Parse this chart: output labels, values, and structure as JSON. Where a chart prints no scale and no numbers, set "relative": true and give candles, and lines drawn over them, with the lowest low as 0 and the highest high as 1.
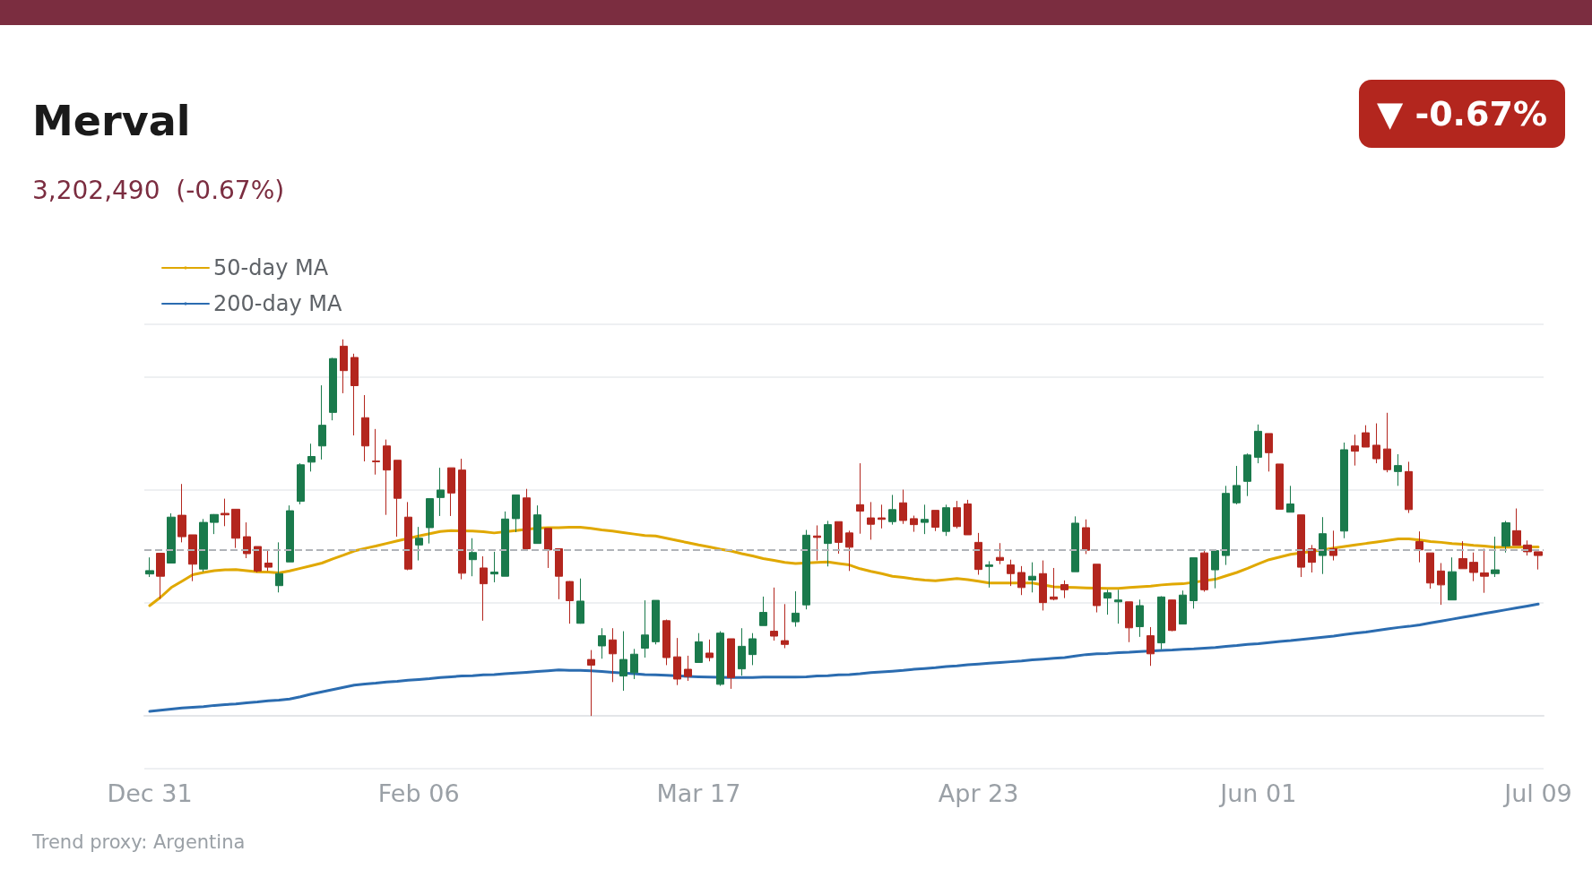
{
  "chart_data": {
    "type": "candlestick",
    "title": "Merval",
    "subtitle": "3,202,490  (-0.67%)",
    "annotations": [
      "▼ -0.67%",
      "Trend proxy: Argentina"
    ],
    "relative": true,
    "grid": "y",
    "legend": "top left",
    "marker": "none",
    "categories": [
      "Dec 31",
      null,
      null,
      null,
      null,
      null,
      null,
      null,
      null,
      null,
      null,
      null,
      null,
      null,
      null,
      null,
      null,
      null,
      null,
      null,
      null,
      null,
      null,
      null,
      null,
      "Feb 06",
      null,
      null,
      null,
      null,
      null,
      null,
      null,
      null,
      null,
      null,
      null,
      null,
      null,
      null,
      null,
      null,
      null,
      null,
      null,
      null,
      null,
      null,
      null,
      null,
      null,
      "Mar 17",
      null,
      null,
      null,
      null,
      null,
      null,
      null,
      null,
      null,
      null,
      null,
      null,
      null,
      null,
      null,
      null,
      null,
      null,
      null,
      null,
      null,
      null,
      null,
      null,
      null,
      "Apr 23",
      null,
      null,
      null,
      null,
      null,
      null,
      null,
      null,
      null,
      null,
      null,
      null,
      null,
      null,
      null,
      null,
      null,
      null,
      null,
      null,
      null,
      null,
      null,
      null,
      null,
      "Jun 01",
      null,
      null,
      null,
      null,
      null,
      null,
      null,
      null,
      null,
      null,
      null,
      null,
      null,
      null,
      null,
      null,
      null,
      null,
      null,
      null,
      null,
      null,
      null,
      null,
      null,
      "Jul 09"
    ],
    "ref_lines": [
      {
        "axis": "y",
        "value": 0.437,
        "color": "#b0b3b8",
        "line_style": "dashed"
      }
    ],
    "series": [
      {
        "ohlc": [
          [
            0.377,
            0.421,
            0.369,
            0.386
          ],
          [
            0.432,
            0.432,
            0.311,
            0.371
          ],
          [
            0.406,
            0.538,
            0.405,
            0.528
          ],
          [
            0.533,
            0.616,
            0.461,
            0.476
          ],
          [
            0.481,
            0.481,
            0.358,
            0.403
          ],
          [
            0.39,
            0.523,
            0.383,
            0.514
          ],
          [
            0.514,
            0.536,
            0.483,
            0.535
          ],
          [
            0.538,
            0.577,
            0.504,
            0.534
          ],
          [
            0.549,
            0.549,
            0.446,
            0.472
          ],
          [
            0.476,
            0.514,
            0.419,
            0.431
          ],
          [
            0.45,
            0.45,
            0.381,
            0.385
          ],
          [
            0.406,
            0.441,
            0.385,
            0.395
          ],
          [
            0.346,
            0.461,
            0.328,
            0.378
          ],
          [
            0.409,
            0.559,
            0.409,
            0.545
          ],
          [
            0.57,
            0.671,
            0.562,
            0.667
          ],
          [
            0.674,
            0.723,
            0.649,
            0.689
          ],
          [
            0.717,
            0.878,
            0.681,
            0.772
          ],
          [
            0.806,
            0.951,
            0.785,
            0.949
          ],
          [
            0.982,
            1,
            0.857,
            0.917
          ],
          [
            0.952,
            0.962,
            0.745,
            0.877
          ],
          [
            0.792,
            0.852,
            0.676,
            0.717
          ],
          [
            0.677,
            0.762,
            0.641,
            0.675
          ],
          [
            0.717,
            0.734,
            0.534,
            0.653
          ],
          [
            0.679,
            0.679,
            0.476,
            0.578
          ],
          [
            0.528,
            0.568,
            0.387,
            0.39
          ],
          [
            0.454,
            0.502,
            0.413,
            0.472
          ],
          [
            0.5,
            0.577,
            0.458,
            0.577
          ],
          [
            0.58,
            0.659,
            0.531,
            0.6
          ],
          [
            0.659,
            0.659,
            0.531,
            0.592
          ],
          [
            0.653,
            0.683,
            0.363,
            0.379
          ],
          [
            0.415,
            0.472,
            0.371,
            0.434
          ],
          [
            0.393,
            0.424,
            0.253,
            0.351
          ],
          [
            0.377,
            0.436,
            0.355,
            0.382
          ],
          [
            0.371,
            0.543,
            0.371,
            0.523
          ],
          [
            0.524,
            0.587,
            0.488,
            0.587
          ],
          [
            0.579,
            0.603,
            0.438,
            0.444
          ],
          [
            0.458,
            0.559,
            0.458,
            0.534
          ],
          [
            0.498,
            0.498,
            0.393,
            0.441
          ],
          [
            0.444,
            0.444,
            0.31,
            0.371
          ],
          [
            0.357,
            0.358,
            0.245,
            0.306
          ],
          [
            0.246,
            0.365,
            0.245,
            0.305
          ],
          [
            0.15,
            0.175,
            0,
            0.135
          ],
          [
            0.186,
            0.233,
            0.152,
            0.213
          ],
          [
            0.202,
            0.233,
            0.09,
            0.165
          ],
          [
            0.106,
            0.225,
            0.067,
            0.15
          ],
          [
            0.115,
            0.178,
            0.098,
            0.164
          ],
          [
            0.18,
            0.307,
            0.155,
            0.215
          ],
          [
            0.197,
            0.307,
            0.19,
            0.307
          ],
          [
            0.253,
            0.256,
            0.135,
            0.155
          ],
          [
            0.157,
            0.207,
            0.082,
            0.098
          ],
          [
            0.124,
            0.16,
            0.093,
            0.105
          ],
          [
            0.142,
            0.22,
            0.142,
            0.197
          ],
          [
            0.167,
            0.203,
            0.145,
            0.155
          ],
          [
            0.084,
            0.225,
            0.08,
            0.22
          ],
          [
            0.205,
            0.205,
            0.072,
            0.102
          ],
          [
            0.125,
            0.233,
            0.107,
            0.185
          ],
          [
            0.163,
            0.22,
            0.135,
            0.205
          ],
          [
            0.24,
            0.317,
            0.24,
            0.275
          ],
          [
            0.225,
            0.341,
            0.2,
            0.212
          ],
          [
            0.2,
            0.297,
            0.18,
            0.19
          ],
          [
            0.25,
            0.331,
            0.237,
            0.273
          ],
          [
            0.295,
            0.494,
            0.283,
            0.48
          ],
          [
            0.478,
            0.506,
            0.413,
            0.474
          ],
          [
            0.458,
            0.518,
            0.397,
            0.508
          ],
          [
            0.516,
            0.516,
            0.431,
            0.461
          ],
          [
            0.486,
            0.492,
            0.385,
            0.448
          ],
          [
            0.561,
            0.671,
            0.484,
            0.544
          ],
          [
            0.526,
            0.568,
            0.468,
            0.509
          ],
          [
            0.526,
            0.561,
            0.498,
            0.522
          ],
          [
            0.516,
            0.587,
            0.508,
            0.548
          ],
          [
            0.566,
            0.601,
            0.51,
            0.519
          ],
          [
            0.524,
            0.532,
            0.489,
            0.508
          ],
          [
            0.514,
            0.561,
            0.483,
            0.522
          ],
          [
            0.546,
            0.546,
            0.491,
            0.501
          ],
          [
            0.49,
            0.561,
            0.478,
            0.553
          ],
          [
            0.553,
            0.571,
            0.498,
            0.503
          ],
          [
            0.563,
            0.574,
            0.481,
            0.481
          ],
          [
            0.461,
            0.486,
            0.375,
            0.389
          ],
          [
            0.397,
            0.411,
            0.341,
            0.401
          ],
          [
            0.421,
            0.459,
            0.403,
            0.413
          ],
          [
            0.401,
            0.415,
            0.345,
            0.378
          ],
          [
            0.381,
            0.398,
            0.321,
            0.341
          ],
          [
            0.361,
            0.408,
            0.328,
            0.371
          ],
          [
            0.378,
            0.413,
            0.28,
            0.301
          ],
          [
            0.316,
            0.393,
            0.307,
            0.31
          ],
          [
            0.349,
            0.36,
            0.313,
            0.335
          ],
          [
            0.383,
            0.53,
            0.383,
            0.512
          ],
          [
            0.5,
            0.522,
            0.43,
            0.44
          ],
          [
            0.403,
            0.403,
            0.275,
            0.293
          ],
          [
            0.313,
            0.335,
            0.269,
            0.327
          ],
          [
            0.303,
            0.335,
            0.245,
            0.308
          ],
          [
            0.303,
            0.303,
            0.196,
            0.234
          ],
          [
            0.237,
            0.309,
            0.21,
            0.293
          ],
          [
            0.213,
            0.236,
            0.133,
            0.165
          ],
          [
            0.194,
            0.318,
            0.177,
            0.316
          ],
          [
            0.308,
            0.309,
            0.225,
            0.227
          ],
          [
            0.244,
            0.333,
            0.244,
            0.321
          ],
          [
            0.306,
            0.42,
            0.285,
            0.42
          ],
          [
            0.433,
            0.438,
            0.33,
            0.335
          ],
          [
            0.388,
            0.439,
            0.339,
            0.439
          ],
          [
            0.426,
            0.611,
            0.401,
            0.591
          ],
          [
            0.566,
            0.664,
            0.562,
            0.612
          ],
          [
            0.623,
            0.697,
            0.584,
            0.693
          ],
          [
            0.687,
            0.774,
            0.671,
            0.756
          ],
          [
            0.75,
            0.75,
            0.649,
            0.699
          ],
          [
            0.669,
            0.669,
            0.549,
            0.549
          ],
          [
            0.541,
            0.611,
            0.541,
            0.563
          ],
          [
            0.534,
            0.534,
            0.369,
            0.395
          ],
          [
            0.444,
            0.454,
            0.381,
            0.408
          ],
          [
            0.426,
            0.528,
            0.377,
            0.484
          ],
          [
            0.444,
            0.492,
            0.413,
            0.426
          ],
          [
            0.491,
            0.726,
            0.472,
            0.707
          ],
          [
            0.717,
            0.747,
            0.665,
            0.703
          ],
          [
            0.752,
            0.772,
            0.714,
            0.714
          ],
          [
            0.719,
            0.777,
            0.671,
            0.683
          ],
          [
            0.709,
            0.805,
            0.647,
            0.654
          ],
          [
            0.649,
            0.695,
            0.611,
            0.665
          ],
          [
            0.649,
            0.675,
            0.539,
            0.548
          ],
          [
            0.463,
            0.49,
            0.408,
            0.441
          ],
          [
            0.433,
            0.433,
            0.338,
            0.353
          ],
          [
            0.385,
            0.406,
            0.295,
            0.348
          ],
          [
            0.308,
            0.421,
            0.308,
            0.383
          ],
          [
            0.418,
            0.464,
            0.391,
            0.391
          ],
          [
            0.408,
            0.434,
            0.358,
            0.381
          ],
          [
            0.38,
            0.444,
            0.327,
            0.371
          ],
          [
            0.378,
            0.476,
            0.369,
            0.388
          ],
          [
            0.451,
            0.518,
            0.434,
            0.513
          ],
          [
            0.492,
            0.551,
            0.453,
            0.453
          ],
          [
            0.454,
            0.466,
            0.426,
            0.436
          ],
          [
            0.436,
            0.436,
            0.389,
            0.426
          ]
        ],
        "colors": [
          "#1a7a4c",
          "#b3261e",
          "#1a7a4c",
          "#b3261e",
          "#b3261e",
          "#1a7a4c",
          "#1a7a4c",
          "#b3261e",
          "#b3261e",
          "#b3261e",
          "#b3261e",
          "#b3261e",
          "#1a7a4c",
          "#1a7a4c",
          "#1a7a4c",
          "#1a7a4c",
          "#1a7a4c",
          "#1a7a4c",
          "#b3261e",
          "#b3261e",
          "#b3261e",
          "#b3261e",
          "#b3261e",
          "#b3261e",
          "#b3261e",
          "#1a7a4c",
          "#1a7a4c",
          "#1a7a4c",
          "#b3261e",
          "#b3261e",
          "#1a7a4c",
          "#b3261e",
          "#1a7a4c",
          "#1a7a4c",
          "#1a7a4c",
          "#b3261e",
          "#1a7a4c",
          "#b3261e",
          "#b3261e",
          "#b3261e",
          "#1a7a4c",
          "#b3261e",
          "#1a7a4c",
          "#b3261e",
          "#1a7a4c",
          "#1a7a4c",
          "#1a7a4c",
          "#1a7a4c",
          "#b3261e",
          "#b3261e",
          "#b3261e",
          "#1a7a4c",
          "#b3261e",
          "#1a7a4c",
          "#b3261e",
          "#1a7a4c",
          "#1a7a4c",
          "#1a7a4c",
          "#b3261e",
          "#b3261e",
          "#1a7a4c",
          "#1a7a4c",
          "#b3261e",
          "#1a7a4c",
          "#b3261e",
          "#b3261e",
          "#b3261e",
          "#b3261e",
          "#b3261e",
          "#1a7a4c",
          "#b3261e",
          "#b3261e",
          "#1a7a4c",
          "#b3261e",
          "#1a7a4c",
          "#b3261e",
          "#b3261e",
          "#b3261e",
          "#1a7a4c",
          "#b3261e",
          "#b3261e",
          "#b3261e",
          "#1a7a4c",
          "#b3261e",
          "#b3261e",
          "#b3261e",
          "#1a7a4c",
          "#b3261e",
          "#b3261e",
          "#1a7a4c",
          "#1a7a4c",
          "#b3261e",
          "#1a7a4c",
          "#b3261e",
          "#1a7a4c",
          "#b3261e",
          "#1a7a4c",
          "#1a7a4c",
          "#b3261e",
          "#1a7a4c",
          "#1a7a4c",
          "#1a7a4c",
          "#1a7a4c",
          "#1a7a4c",
          "#b3261e",
          "#b3261e",
          "#1a7a4c",
          "#b3261e",
          "#b3261e",
          "#1a7a4c",
          "#b3261e",
          "#1a7a4c",
          "#b3261e",
          "#b3261e",
          "#b3261e",
          "#b3261e",
          "#1a7a4c",
          "#b3261e",
          "#b3261e",
          "#b3261e",
          "#b3261e",
          "#1a7a4c",
          "#b3261e",
          "#b3261e",
          "#b3261e",
          "#1a7a4c",
          "#1a7a4c",
          "#b3261e",
          "#b3261e",
          "#b3261e"
        ]
      },
      {
        "type": "line",
        "name": "50-day MA",
        "color": "#e0a800",
        "values": [
          0.293,
          0.315,
          0.341,
          0.358,
          0.375,
          0.381,
          0.386,
          0.388,
          0.389,
          0.386,
          0.383,
          0.382,
          0.38,
          0.385,
          0.392,
          0.399,
          0.406,
          0.417,
          0.427,
          0.438,
          0.445,
          0.451,
          0.458,
          0.465,
          null,
          0.478,
          0.484,
          0.49,
          0.492,
          null,
          0.491,
          0.489,
          0.486,
          null,
          0.492,
          null,
          0.499,
          0.5,
          0.5,
          0.501,
          0.501,
          0.498,
          0.494,
          0.491,
          0.487,
          0.483,
          0.479,
          0.478,
          0.472,
          0.466,
          0.46,
          0.454,
          0.449,
          0.443,
          0.438,
          0.431,
          0.425,
          0.418,
          0.413,
          0.408,
          0.405,
          null,
          0.408,
          0.409,
          0.405,
          0.401,
          0.391,
          0.384,
          0.378,
          0.371,
          0.368,
          0.364,
          0.361,
          0.359,
          0.362,
          0.365,
          0.362,
          0.358,
          0.353,
          0.353,
          0.353,
          null,
          0.353,
          null,
          0.343,
          0.342,
          0.341,
          0.34,
          null,
          0.339,
          0.339,
          0.341,
          0.343,
          0.345,
          0.348,
          0.35,
          0.351,
          null,
          null,
          0.363,
          0.372,
          0.381,
          0.392,
          0.404,
          0.415,
          0.422,
          0.429,
          null,
          0.437,
          null,
          0.446,
          0.45,
          0.454,
          0.458,
          0.462,
          0.466,
          0.47,
          0.47,
          0.467,
          0.463,
          0.461,
          0.458,
          0.456,
          0.453,
          0.451,
          0.448,
          0.448,
          0.448,
          0.449,
          0.449
        ]
      },
      {
        "type": "line",
        "name": "200-day MA",
        "color": "#2b6cb0",
        "values": [
          0.012,
          0.015,
          0.018,
          0.021,
          0.023,
          0.025,
          0.028,
          0.03,
          0.032,
          0.035,
          0.037,
          0.04,
          0.042,
          0.045,
          0.051,
          0.058,
          0.064,
          0.07,
          0.076,
          0.082,
          0.085,
          0.087,
          0.09,
          0.092,
          0.095,
          0.097,
          0.099,
          0.102,
          0.104,
          0.106,
          0.107,
          0.109,
          0.11,
          0.112,
          0.114,
          0.116,
          0.118,
          0.12,
          0.122,
          0.121,
          0.121,
          0.12,
          0.118,
          0.116,
          null,
          0.112,
          0.11,
          0.109,
          0.108,
          null,
          0.105,
          0.104,
          0.103,
          null,
          0.102,
          0.102,
          0.102,
          0.103,
          0.103,
          0.103,
          0.103,
          0.104,
          0.106,
          0.107,
          0.109,
          0.11,
          0.112,
          0.115,
          0.117,
          0.119,
          0.121,
          0.124,
          0.126,
          0.128,
          0.131,
          0.133,
          0.136,
          0.138,
          0.14,
          0.142,
          0.144,
          0.146,
          0.149,
          0.151,
          0.153,
          0.155,
          0.159,
          0.163,
          0.165,
          0.166,
          0.168,
          0.169,
          0.171,
          null,
          0.174,
          0.175,
          0.177,
          0.178,
          0.18,
          0.182,
          0.185,
          0.187,
          0.19,
          0.192,
          0.195,
          0.198,
          0.2,
          0.203,
          0.206,
          0.209,
          0.212,
          0.216,
          0.22,
          0.223,
          0.227,
          0.231,
          0.235,
          0.238,
          0.242,
          0.247,
          0.252,
          0.257,
          0.262,
          0.267,
          0.272,
          0.277,
          0.282,
          0.287,
          0.292,
          0.297
        ]
      }
    ]
  }
}
